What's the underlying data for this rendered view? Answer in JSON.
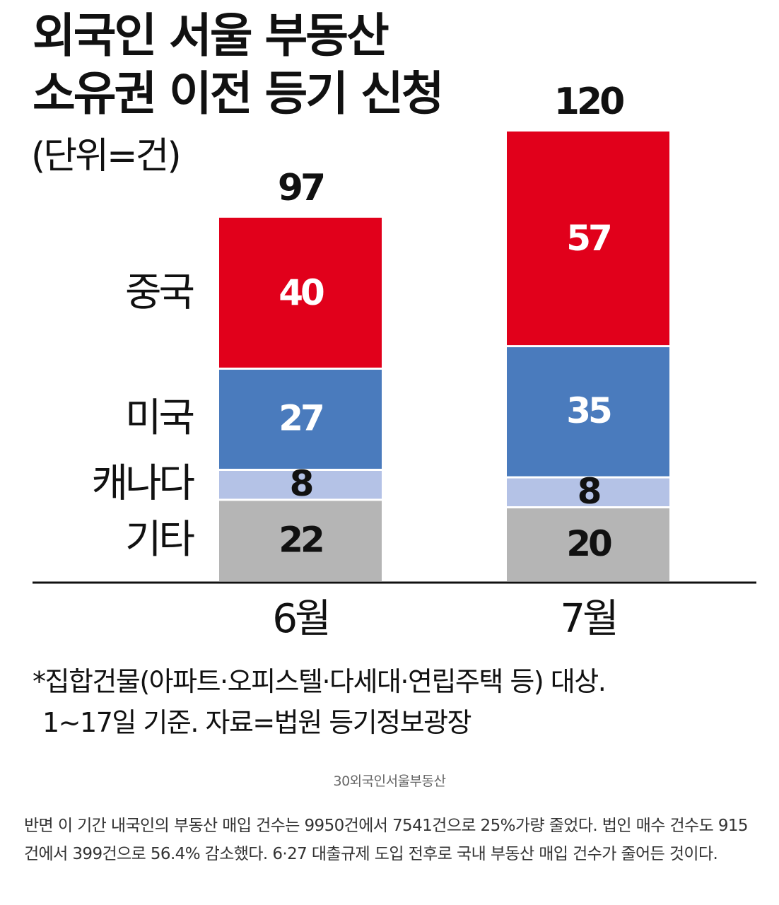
{
  "title_line1": "외국인 서울 부동산",
  "title_line2": "소유권 이전 등기 신청",
  "unit_label": "(단위=건)",
  "footnote_line1": "*집합건물(아파트·오피스텔·다세대·연립주택 등) 대상.",
  "footnote_line2": "1~17일 기준. 자료=법원 등기정보광장",
  "image_caption": "30외국인서울부동산",
  "article_text": "반면 이 기간 내국인의 부동산 매입 건수는 9950건에서 7541건으로 25%가량 줄었다. 법인 매수 건수도 915건에서 399건으로 56.4% 감소했다. 6·27 대출규제 도입 전후로 국내 부동산 매입 건수가 줄어든 것이다.",
  "chart_data": {
    "type": "bar",
    "stacked": true,
    "categories": [
      "6월",
      "7월"
    ],
    "totals": [
      "97",
      "120"
    ],
    "series": [
      {
        "name": "기타",
        "values": [
          22,
          20
        ],
        "color": "#b5b5b5",
        "label_color": "#111111"
      },
      {
        "name": "캐나다",
        "values": [
          8,
          8
        ],
        "color": "#b4c2e6",
        "label_color": "#111111"
      },
      {
        "name": "미국",
        "values": [
          27,
          35
        ],
        "color": "#4a7bbd",
        "label_color": "#ffffff"
      },
      {
        "name": "중국",
        "values": [
          40,
          57
        ],
        "color": "#e1001b",
        "label_color": "#ffffff"
      }
    ],
    "title": "외국인 서울 부동산 소유권 이전 등기 신청",
    "ylabel": "(단위=건)",
    "legend": "left-labels",
    "grid": false
  }
}
